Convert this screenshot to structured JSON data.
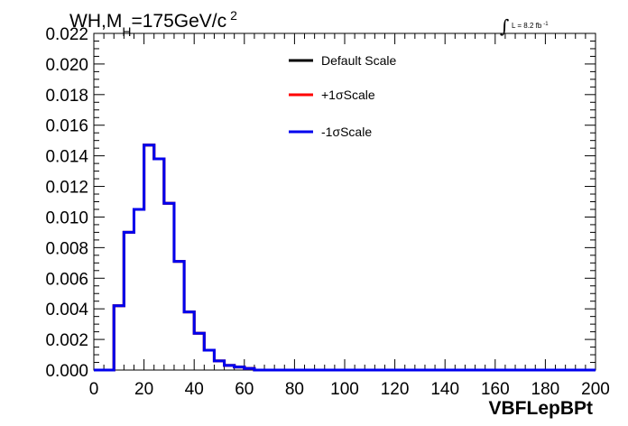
{
  "chart_data": {
    "type": "line",
    "title": {
      "main": "WH,M",
      "sub": "H",
      "value": "=175GeV/c",
      "sup": "2"
    },
    "luminosity": {
      "text": "L = 8.2 fb",
      "sup": "-1"
    },
    "xlabel": "VBFLepBPt",
    "ylabel": "",
    "xlim": [
      0,
      200
    ],
    "ylim": [
      0,
      0.022
    ],
    "x_ticks": [
      "0",
      "20",
      "40",
      "60",
      "80",
      "100",
      "120",
      "140",
      "160",
      "180",
      "200"
    ],
    "y_ticks": [
      "0.000",
      "0.002",
      "0.004",
      "0.006",
      "0.008",
      "0.010",
      "0.012",
      "0.014",
      "0.016",
      "0.018",
      "0.020",
      "0.022"
    ],
    "bin_width": 4,
    "bin_edges": [
      0,
      4,
      8,
      12,
      16,
      20,
      24,
      28,
      32,
      36,
      40,
      44,
      48,
      52,
      56,
      60,
      64,
      68,
      72,
      76,
      80,
      84,
      88,
      92,
      96,
      100,
      104,
      108,
      112,
      116,
      120,
      124,
      128,
      132,
      136,
      140,
      144,
      148,
      152,
      156,
      160,
      164,
      168,
      172,
      176,
      180,
      184,
      188,
      192,
      196,
      200
    ],
    "series": [
      {
        "name": "Default Scale",
        "color": "#000000",
        "values": [
          0,
          0,
          0.0042,
          0.009,
          0.0105,
          0.0147,
          0.0138,
          0.0109,
          0.0071,
          0.0038,
          0.0024,
          0.0013,
          0.0006,
          0.0003,
          0.0002,
          0.0001,
          0,
          0,
          0,
          0,
          0,
          0,
          0,
          0,
          0,
          0,
          0,
          0,
          0,
          0,
          0,
          0,
          0,
          0,
          0,
          0,
          0,
          0,
          0,
          0,
          0,
          0,
          0,
          0,
          0,
          0,
          0,
          0,
          0,
          0
        ]
      },
      {
        "name": "+1σScale",
        "color": "#ff0000",
        "values": [
          0,
          0,
          0.0042,
          0.009,
          0.0105,
          0.0147,
          0.0138,
          0.0109,
          0.0071,
          0.0038,
          0.0024,
          0.0013,
          0.0006,
          0.0003,
          0.0002,
          0.0001,
          0,
          0,
          0,
          0,
          0,
          0,
          0,
          0,
          0,
          0,
          0,
          0,
          0,
          0,
          0,
          0,
          0,
          0,
          0,
          0,
          0,
          0,
          0,
          0,
          0,
          0,
          0,
          0,
          0,
          0,
          0,
          0,
          0,
          0
        ]
      },
      {
        "name": "-1σScale",
        "color": "#0000ee",
        "values": [
          0,
          0,
          0.0042,
          0.009,
          0.0105,
          0.0147,
          0.0138,
          0.0109,
          0.0071,
          0.0038,
          0.0024,
          0.0013,
          0.0006,
          0.0003,
          0.0002,
          0.0001,
          0,
          0,
          0,
          0,
          0,
          0,
          0,
          0,
          0,
          0,
          0,
          0,
          0,
          0,
          0,
          0,
          0,
          0,
          0,
          0,
          0,
          0,
          0,
          0,
          0,
          0,
          0,
          0,
          0,
          0,
          0,
          0,
          0,
          0
        ]
      }
    ],
    "grid": false,
    "legend_position": "top-center"
  }
}
